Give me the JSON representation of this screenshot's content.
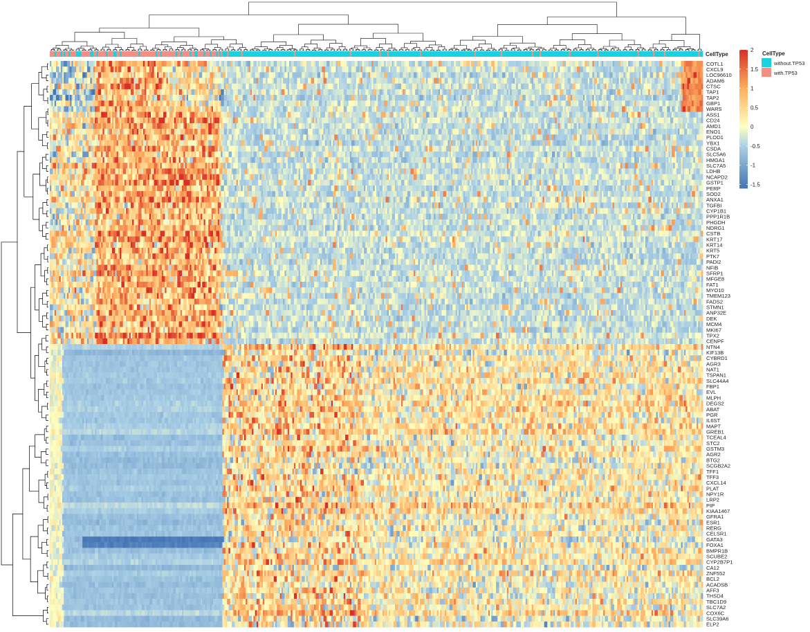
{
  "chart_data": {
    "type": "heatmap",
    "annotation": {
      "title": "CellType",
      "groups": [
        {
          "name": "without.TP53",
          "color": "#1ad1e0"
        },
        {
          "name": "with.TP53",
          "color": "#f48f85"
        }
      ]
    },
    "color_scale": {
      "ticks": [
        2,
        1.5,
        1,
        0.5,
        0,
        -0.5,
        -1,
        -1.5
      ],
      "tick_labels": [
        "2",
        "1.5",
        "1",
        "0.5",
        "0",
        "-0.5",
        "-1",
        "-1.5"
      ],
      "range": [
        -1.6,
        2.0
      ],
      "stops": [
        {
          "value": -1.6,
          "color": "#4575b4"
        },
        {
          "value": -0.5,
          "color": "#abd0e6"
        },
        {
          "value": 0,
          "color": "#ffffbf"
        },
        {
          "value": 1,
          "color": "#fdae61"
        },
        {
          "value": 2,
          "color": "#d73027"
        }
      ]
    },
    "genes": [
      "COTL1",
      "CXCL9",
      "LOC96610",
      "ADAM6",
      "CTSC",
      "TAP1",
      "TAP2",
      "GBP1",
      "WARS",
      "ASS1",
      "CD24",
      "AMD1",
      "ENO1",
      "PLOD1",
      "YBX1",
      "CSDA",
      "SLC5A6",
      "HMGA1",
      "SLC7A5",
      "LDHB",
      "NCAPD2",
      "GSTP1",
      "PERP",
      "SOD2",
      "ANXA1",
      "TGFBI",
      "CYP1B1",
      "PPP1R1B",
      "PHGDH",
      "NDRG1",
      "CSTB",
      "KRT17",
      "KRT14",
      "KRT5",
      "PTK7",
      "PADI2",
      "NFIB",
      "SFRP1",
      "MFGE8",
      "FAT1",
      "MYO10",
      "TMEM123",
      "FADS2",
      "STMN1",
      "ANP32E",
      "DEK",
      "MCM4",
      "MKI67",
      "TPX2",
      "CENPF",
      "NTN4",
      "KIF13B",
      "CYBRD1",
      "AGR3",
      "NAT1",
      "TSPAN1",
      "SLC44A4",
      "FBP1",
      "EVL",
      "MLPH",
      "DEGS2",
      "ABAT",
      "PGR",
      "IL6ST",
      "MAPT",
      "GREB1",
      "TCEAL4",
      "STC2",
      "GSTM3",
      "AGR2",
      "BTG2",
      "SCGB2A2",
      "TFF1",
      "TFF3",
      "CXCL14",
      "PLAT",
      "NPY1R",
      "LRP2",
      "PIP",
      "KIAA1467",
      "GFRA1",
      "ESR1",
      "RERG",
      "CELSR1",
      "GATA3",
      "FOXA1",
      "BMPR1B",
      "SCUBE2",
      "CYP2B7P1",
      "CA12",
      "ZNF552",
      "BCL2",
      "ACADSB",
      "AFF3",
      "THSD4",
      "TBC1D9",
      "SLC7A2",
      "COX6C",
      "SLC39A6",
      "ELP2"
    ],
    "gene_clusters": [
      {
        "first_gene": "COTL1",
        "last_gene": "WARS",
        "pattern": "high in subset of with.TP53 cells and a small block at far right"
      },
      {
        "first_gene": "ASS1",
        "last_gene": "CENPF",
        "pattern": "high in with.TP53 cells, low in without.TP53 cells"
      },
      {
        "first_gene": "NTN4",
        "last_gene": "ELP2",
        "pattern": "low in with.TP53 cells, high in without.TP53 cells"
      }
    ]
  }
}
